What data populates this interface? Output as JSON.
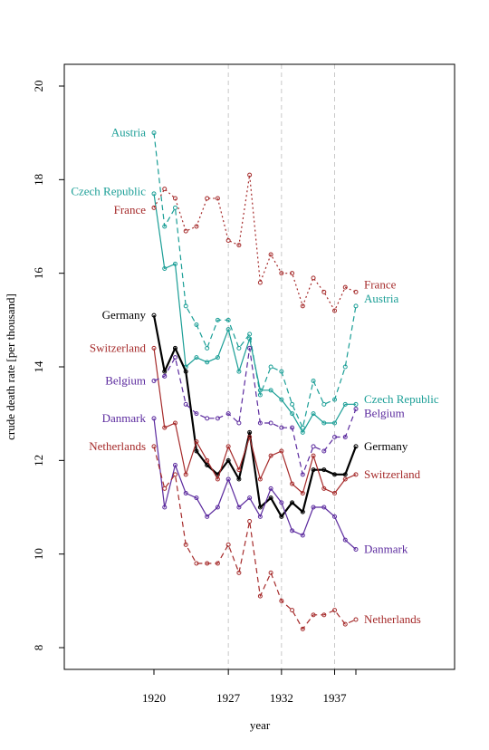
{
  "chart_data": {
    "type": "line",
    "title": "",
    "xlabel": "year",
    "ylabel": "crude death rate [per thousand]",
    "x": [
      1920,
      1921,
      1922,
      1923,
      1924,
      1925,
      1926,
      1927,
      1928,
      1929,
      1930,
      1931,
      1932,
      1933,
      1934,
      1935,
      1936,
      1937,
      1938,
      1939
    ],
    "xlim": [
      1920,
      1939
    ],
    "ylim": [
      8,
      20
    ],
    "x_ticks": [
      1920,
      1927,
      1932,
      1937,
      1939
    ],
    "x_tick_labels": [
      "1920",
      "1927",
      "1932",
      "1937",
      ""
    ],
    "y_ticks": [
      8,
      10,
      12,
      14,
      16,
      18,
      20
    ],
    "y_tick_labels": [
      "8",
      "10",
      "12",
      "14",
      "16",
      "18",
      "20"
    ],
    "vertical_reference_lines": [
      1927,
      1932,
      1937
    ],
    "grid": false,
    "legend": "direct labels at both ends of each line",
    "series": [
      {
        "name": "Austria",
        "color": "#1a9e96",
        "line_style": "dashed",
        "line_width": 1.2,
        "values": [
          19.0,
          17.0,
          17.4,
          15.3,
          14.9,
          14.4,
          15.0,
          15.0,
          14.4,
          14.7,
          13.4,
          14.0,
          13.9,
          13.2,
          12.7,
          13.7,
          13.2,
          13.3,
          14.0,
          15.3
        ]
      },
      {
        "name": "Czech Republic",
        "color": "#1a9e96",
        "line_style": "solid",
        "line_width": 1.2,
        "values": [
          17.7,
          16.1,
          16.2,
          14.0,
          14.2,
          14.1,
          14.2,
          14.8,
          13.9,
          14.6,
          13.5,
          13.5,
          13.3,
          13.0,
          12.6,
          13.0,
          12.8,
          12.8,
          13.2,
          13.2
        ]
      },
      {
        "name": "France",
        "color": "#a52a2a",
        "line_style": "dotted",
        "line_width": 1.2,
        "values": [
          17.4,
          17.8,
          17.6,
          16.9,
          17.0,
          17.6,
          17.6,
          16.7,
          16.6,
          18.1,
          15.8,
          16.4,
          16.0,
          16.0,
          15.3,
          15.9,
          15.6,
          15.2,
          15.7,
          15.6
        ]
      },
      {
        "name": "Germany",
        "color": "#000000",
        "line_style": "solid",
        "line_width": 2.2,
        "values": [
          15.1,
          13.9,
          14.4,
          13.9,
          12.2,
          11.9,
          11.7,
          12.0,
          11.6,
          12.6,
          11.0,
          11.2,
          10.8,
          11.1,
          10.9,
          11.8,
          11.8,
          11.7,
          11.7,
          12.3
        ]
      },
      {
        "name": "Switzerland",
        "color": "#a52a2a",
        "line_style": "solid",
        "line_width": 1.2,
        "values": [
          14.4,
          12.7,
          12.8,
          11.7,
          12.4,
          12.0,
          11.6,
          12.3,
          11.8,
          12.5,
          11.6,
          12.1,
          12.2,
          11.5,
          11.3,
          12.1,
          11.4,
          11.3,
          11.6,
          11.7
        ]
      },
      {
        "name": "Belgium",
        "color": "#5b2a9e",
        "line_style": "dashed",
        "line_width": 1.2,
        "values": [
          13.7,
          13.8,
          14.2,
          13.2,
          13.0,
          12.9,
          12.9,
          13.0,
          12.8,
          14.4,
          12.8,
          12.8,
          12.7,
          12.7,
          11.7,
          12.3,
          12.2,
          12.5,
          12.5,
          13.1
        ]
      },
      {
        "name": "Danmark",
        "color": "#5b2a9e",
        "line_style": "solid",
        "line_width": 1.2,
        "values": [
          12.9,
          11.0,
          11.9,
          11.3,
          11.2,
          10.8,
          11.0,
          11.6,
          11.0,
          11.2,
          10.8,
          11.4,
          11.1,
          10.5,
          10.4,
          11.0,
          11.0,
          10.8,
          10.3,
          10.1
        ]
      },
      {
        "name": "Netherlands",
        "color": "#a52a2a",
        "line_style": "dashed",
        "line_width": 1.2,
        "values": [
          12.3,
          11.4,
          11.7,
          10.2,
          9.8,
          9.8,
          9.8,
          10.2,
          9.6,
          10.7,
          9.1,
          9.6,
          9.0,
          8.8,
          8.4,
          8.7,
          8.7,
          8.8,
          8.5,
          8.6
        ]
      }
    ],
    "left_labels": [
      {
        "text": "Austria",
        "series": "Austria",
        "y": 19.0
      },
      {
        "text": "Czech Republic",
        "series": "Czech Republic",
        "y": 17.7
      },
      {
        "text": "France",
        "series": "France",
        "y": 17.4
      },
      {
        "text": "Germany",
        "series": "Germany",
        "y": 15.1
      },
      {
        "text": "Switzerland",
        "series": "Switzerland",
        "y": 14.4
      },
      {
        "text": "Belgium",
        "series": "Belgium",
        "y": 13.7
      },
      {
        "text": "Danmark",
        "series": "Danmark",
        "y": 12.9
      },
      {
        "text": "Netherlands",
        "series": "Netherlands",
        "y": 12.3
      }
    ],
    "right_labels": [
      {
        "text": "France",
        "series": "France",
        "y": 15.6
      },
      {
        "text": "Austria",
        "series": "Austria",
        "y": 15.3
      },
      {
        "text": "Czech Republic",
        "series": "Czech Republic",
        "y": 13.4
      },
      {
        "text": "Belgium",
        "series": "Belgium",
        "y": 13.1
      },
      {
        "text": "Germany",
        "series": "Germany",
        "y": 12.3
      },
      {
        "text": "Switzerland",
        "series": "Switzerland",
        "y": 11.7
      },
      {
        "text": "Danmark",
        "series": "Danmark",
        "y": 10.1
      },
      {
        "text": "Netherlands",
        "series": "Netherlands",
        "y": 8.6
      }
    ]
  }
}
